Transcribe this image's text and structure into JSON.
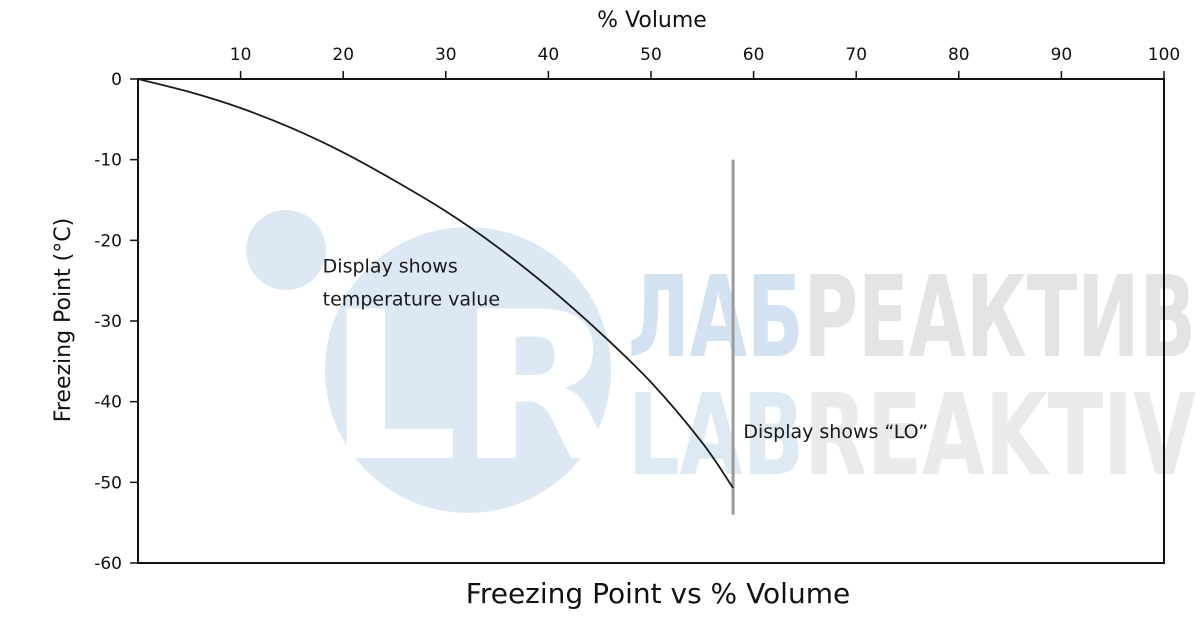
{
  "chart_data": {
    "type": "line",
    "title": "Freezing Point vs % Volume",
    "xlabel": "% Volume",
    "ylabel": "Freezing Point (°C)",
    "xlim": [
      0,
      100
    ],
    "ylim": [
      -60,
      0
    ],
    "x_ticks": [
      10,
      20,
      30,
      40,
      50,
      60,
      70,
      80,
      90,
      100
    ],
    "y_ticks": [
      0,
      -10,
      -20,
      -30,
      -40,
      -50,
      -60
    ],
    "x_axis_position": "top",
    "grid": false,
    "series": [
      {
        "x": [
          0,
          5,
          10,
          15,
          20,
          25,
          30,
          35,
          40,
          45,
          50,
          55,
          58
        ],
        "y": [
          0,
          -1.6,
          -3.6,
          -6.1,
          -9.1,
          -12.6,
          -16.4,
          -20.8,
          -25.8,
          -31.4,
          -37.6,
          -45.1,
          -50.7
        ]
      }
    ],
    "reference_line": {
      "x": 58,
      "y_range": [
        -10,
        -54
      ]
    },
    "annotations": [
      {
        "lines": [
          "Display shows",
          "temperature value"
        ],
        "x": 18,
        "y": -24
      },
      {
        "lines": [
          "Display shows “LO”"
        ],
        "x": 59,
        "y": -44.5
      }
    ],
    "colors": {
      "line": "#1a1a1a",
      "reference_line": "#9a9a9a",
      "watermark_circle": "#dce8f3",
      "watermark_blue": "#d2e2f0",
      "watermark_gray": "#e4e4e4"
    }
  },
  "watermark": {
    "monogram": "LR",
    "line1_blue": "ЛАБ",
    "line1_gray": "РЕАКТИВ",
    "line2_blue": "LAB",
    "line2_gray": "REAKTIV"
  }
}
